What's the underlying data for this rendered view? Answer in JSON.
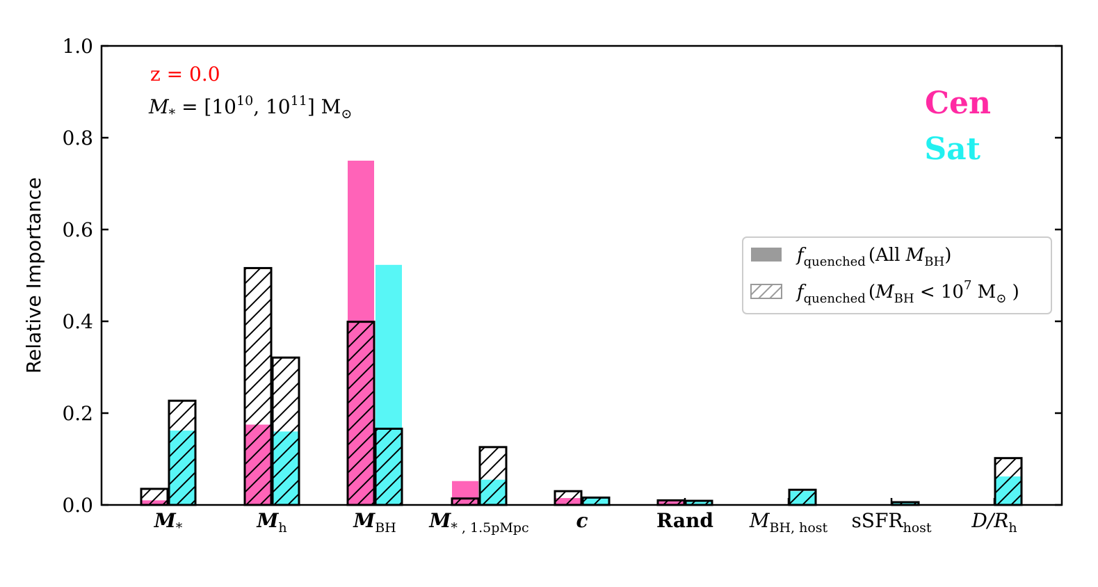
{
  "chart_data": {
    "type": "bar",
    "categories": [
      {
        "base": "M",
        "sub": "*",
        "bold": true,
        "italic": true
      },
      {
        "base": "M",
        "sub": "h",
        "bold": true,
        "italic": true
      },
      {
        "base": "M",
        "sub": "BH",
        "bold": true,
        "italic": true
      },
      {
        "base": "M",
        "sub": "* , 1.5pMpc",
        "bold": true,
        "italic": true
      },
      {
        "base": "c",
        "sub": "",
        "bold": true,
        "italic": true
      },
      {
        "base": "Rand",
        "sub": "",
        "bold": true,
        "italic": false
      },
      {
        "base": "M",
        "sub": "BH, host",
        "bold": false,
        "italic": true
      },
      {
        "base": "sSFR",
        "sub": "host",
        "bold": false,
        "italic": false
      },
      {
        "base": "D/R",
        "sub": "h",
        "bold": false,
        "italic": true
      }
    ],
    "ylabel": "Relative Importance",
    "ylim": [
      0.0,
      1.0
    ],
    "yticks": [
      "0.0",
      "0.2",
      "0.4",
      "0.6",
      "0.8",
      "1.0"
    ],
    "series": [
      {
        "group": "Cen",
        "kind": "filled",
        "values": [
          0.01,
          0.175,
          0.75,
          0.052,
          0.015,
          0.008,
          0.0,
          0.0,
          0.0
        ]
      },
      {
        "group": "Cen",
        "kind": "hatched",
        "values": [
          0.035,
          0.516,
          0.399,
          0.014,
          0.03,
          0.01,
          0.0,
          0.0,
          0.0
        ]
      },
      {
        "group": "Sat",
        "kind": "filled",
        "values": [
          0.162,
          0.16,
          0.523,
          0.055,
          0.015,
          0.008,
          0.03,
          0.004,
          0.062
        ]
      },
      {
        "group": "Sat",
        "kind": "hatched",
        "values": [
          0.227,
          0.321,
          0.166,
          0.126,
          0.016,
          0.009,
          0.033,
          0.006,
          0.102
        ]
      }
    ],
    "colors": {
      "cen": "#ff5bb4",
      "cen_text": "#ff2aa3",
      "sat": "#4ff5f5",
      "sat_text": "#22f0f0",
      "redshift": "#ff0000"
    },
    "annotations": {
      "redshift": "z = 0.0",
      "mass_range": {
        "lhs": "M",
        "lhs_sub": "*",
        "eq": " = [10",
        "exp1": "10",
        "mid": ", 10",
        "exp2": "11",
        "close": "] M",
        "sun": "⊙"
      },
      "cen_label": "Cen",
      "sat_label": "Sat"
    },
    "legend": {
      "position": "center-right",
      "entries": [
        {
          "style": "filled",
          "f": "f",
          "f_sub": "quenched",
          "text": "(All ",
          "m": "M",
          "m_sub": "BH",
          "close": ")"
        },
        {
          "style": "hatched",
          "f": "f",
          "f_sub": "quenched",
          "text": "(",
          "m": "M",
          "m_sub": "BH",
          "lt": " < 10",
          "exp": "7",
          "unit": " M",
          "sun": "⊙",
          "close": " )"
        }
      ]
    },
    "grid": false
  }
}
